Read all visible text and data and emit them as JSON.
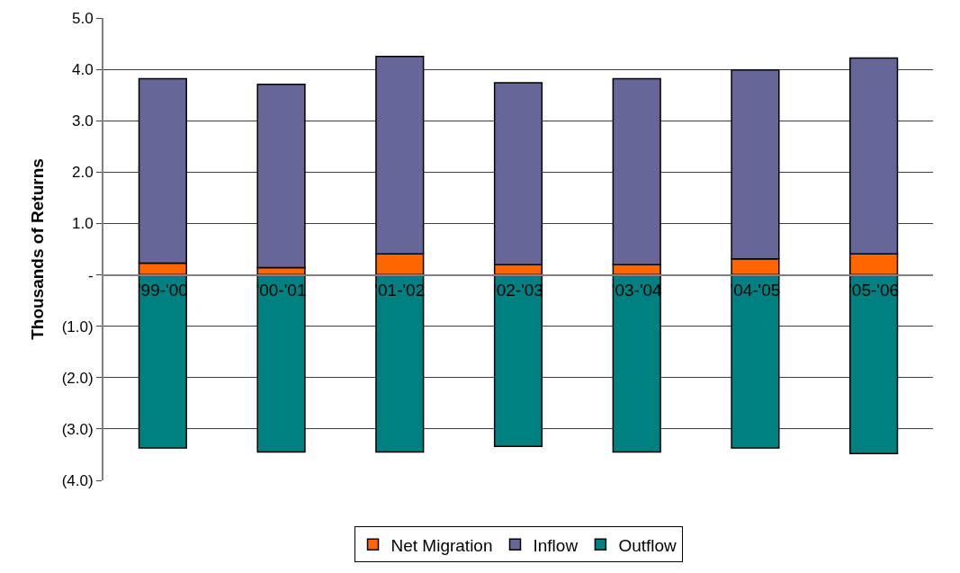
{
  "chart_data": {
    "type": "bar",
    "stacked": true,
    "ylabel": "Thousands of Returns",
    "categories": [
      "'99-'00",
      "'00-'01",
      "'01-'02",
      "'02-'03",
      "'03-'04",
      "'04-'05",
      "'05-'06"
    ],
    "series": [
      {
        "name": "Net Migration",
        "color": "#ff6600",
        "values": [
          0.23,
          0.14,
          0.41,
          0.2,
          0.2,
          0.31,
          0.41
        ]
      },
      {
        "name": "Inflow",
        "color": "#666699",
        "values": [
          3.59,
          3.57,
          3.84,
          3.54,
          3.62,
          3.68,
          3.81
        ]
      },
      {
        "name": "Outflow",
        "color": "#008080",
        "values": [
          -3.37,
          -3.45,
          -3.45,
          -3.34,
          -3.45,
          -3.37,
          -3.48
        ]
      }
    ],
    "ylim": [
      -4,
      5
    ],
    "yticks": [
      {
        "value": -4,
        "label": "(4.0)"
      },
      {
        "value": -3,
        "label": "(3.0)"
      },
      {
        "value": -2,
        "label": "(2.0)"
      },
      {
        "value": -1,
        "label": "(1.0)"
      },
      {
        "value": 0,
        "label": "-"
      },
      {
        "value": 1,
        "label": "1.0"
      },
      {
        "value": 2,
        "label": "2.0"
      },
      {
        "value": 3,
        "label": "3.0"
      },
      {
        "value": 4,
        "label": "4.0"
      },
      {
        "value": 5,
        "label": "5.0"
      }
    ],
    "grid": "y",
    "legend": "bottom"
  }
}
